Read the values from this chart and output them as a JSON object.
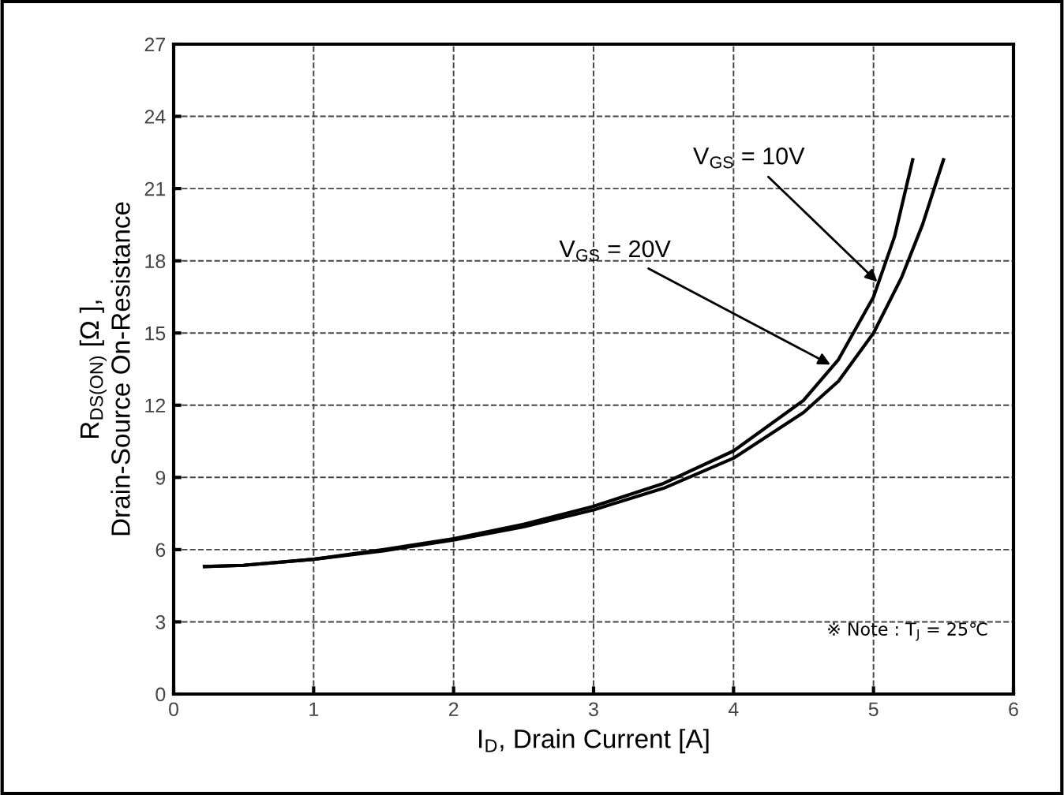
{
  "chart_data": {
    "type": "line",
    "xlabel": "I$_{D}$, Drain Current [A]",
    "ylabel": "R$_{DS(ON)}$ [Ω ],\nDrain-Source On-Resistance",
    "xlim": [
      0,
      6
    ],
    "xticks": [
      0,
      1,
      2,
      3,
      4,
      5,
      6
    ],
    "ylim": [
      0,
      27
    ],
    "yticks": [
      0,
      3,
      6,
      9,
      12,
      15,
      18,
      21,
      24,
      27
    ],
    "grid": true,
    "line_style": "solid",
    "marker": "none",
    "series": [
      {
        "color": "#000000",
        "x": [
          0.22,
          0.5,
          1,
          1.5,
          2,
          2.5,
          3,
          3.5,
          4,
          4.5,
          4.75,
          5,
          5.15,
          5.28
        ],
        "values": [
          5.3,
          5.35,
          5.6,
          6,
          6.45,
          7.05,
          7.8,
          8.75,
          10.1,
          12.2,
          13.9,
          16.5,
          19,
          22.2
        ]
      },
      {
        "color": "#000000",
        "x": [
          0.22,
          0.5,
          1,
          1.5,
          2,
          2.5,
          3,
          3.5,
          4,
          4.5,
          4.75,
          5,
          5.2,
          5.35,
          5.5
        ],
        "values": [
          5.3,
          5.35,
          5.6,
          5.95,
          6.4,
          6.95,
          7.65,
          8.55,
          9.8,
          11.7,
          13.0,
          15.0,
          17.3,
          19.5,
          22.2
        ]
      }
    ],
    "annotations": [
      {
        "text": "V$_{GS}$ = 10V",
        "x": 5.05,
        "y": 17.0
      },
      {
        "text": "V$_{GS}$ = 20V",
        "x": 4.72,
        "y": 13.6
      },
      "※ Note : T$_{J}$ = 25℃"
    ]
  }
}
